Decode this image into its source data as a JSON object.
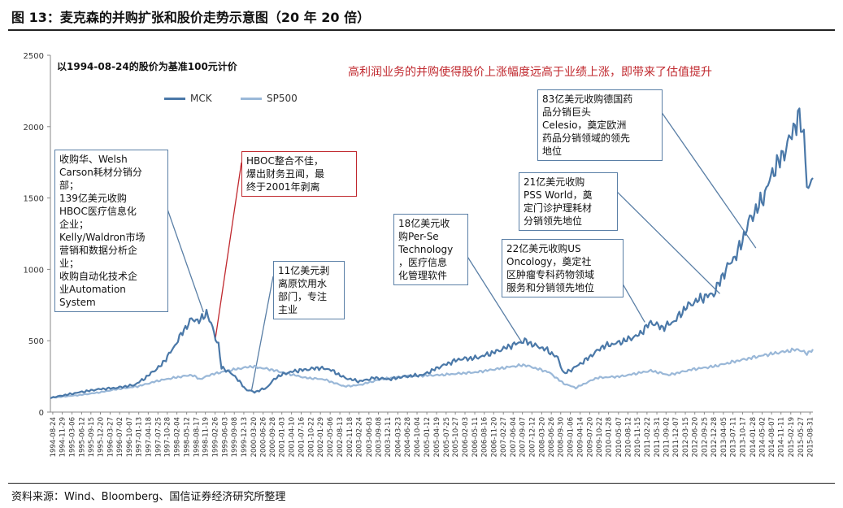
{
  "figure": {
    "title": "图 13：麦克森的并购扩张和股价走势示意图（20 年 20 倍）",
    "source": "资料来源：Wind、Bloomberg、国信证券经济研究所整理",
    "base_note": "以1994-08-24的股价为基准100元计价",
    "headline": "高利润业务的并购使得股价上涨幅度远高于业绩上涨，即带来了估值提升"
  },
  "chart_data": {
    "type": "line",
    "ylim": [
      0,
      2500
    ],
    "yticks": [
      0,
      500,
      1000,
      1500,
      2000,
      2500
    ],
    "x_labels": [
      "1994-08-24",
      "1994-11-29",
      "1995-03-06",
      "1995-06-12",
      "1995-09-15",
      "1995-12-20",
      "1996-03-27",
      "1996-07-02",
      "1996-10-07",
      "1997-01-13",
      "1997-04-18",
      "1997-07-25",
      "1997-10-28",
      "1998-02-04",
      "1998-05-12",
      "1998-08-17",
      "1998-11-19",
      "1999-02-26",
      "1999-06-03",
      "1999-09-08",
      "1999-12-13",
      "2000-03-20",
      "2000-06-26",
      "2000-09-28",
      "2001-01-03",
      "2001-04-10",
      "2001-07-16",
      "2001-10-22",
      "2002-01-29",
      "2002-05-06",
      "2002-08-13",
      "2002-11-18",
      "2003-02-24",
      "2003-06-03",
      "2003-09-08",
      "2003-12-11",
      "2004-03-23",
      "2004-06-28",
      "2004-10-04",
      "2005-01-12",
      "2005-04-19",
      "2005-07-25",
      "2005-10-27",
      "2006-02-03",
      "2006-05-11",
      "2006-08-16",
      "2006-11-20",
      "2007-02-27",
      "2007-06-04",
      "2007-09-07",
      "2007-12-12",
      "2008-03-20",
      "2008-06-26",
      "2008-09-30",
      "2009-01-06",
      "2009-04-14",
      "2009-07-20",
      "2009-10-22",
      "2010-01-28",
      "2010-05-07",
      "2010-08-12",
      "2010-11-15",
      "2011-02-22",
      "2011-05-31",
      "2011-09-02",
      "2011-12-07",
      "2012-03-15",
      "2012-06-20",
      "2012-09-25",
      "2012-12-28",
      "2013-04-05",
      "2013-07-11",
      "2013-10-17",
      "2014-01-28",
      "2014-05-02",
      "2014-08-07",
      "2014-11-11",
      "2015-02-19",
      "2015-05-27",
      "2015-08-31"
    ],
    "series": [
      {
        "name": "MCK",
        "color": "#4a78a8",
        "points": [
          [
            "1994-08",
            100
          ],
          [
            "1995-01",
            120
          ],
          [
            "1995-06",
            140
          ],
          [
            "1995-12",
            160
          ],
          [
            "1996-06",
            170
          ],
          [
            "1996-12",
            190
          ],
          [
            "1997-03",
            230
          ],
          [
            "1997-09",
            330
          ],
          [
            "1998-01",
            450
          ],
          [
            "1998-04",
            560
          ],
          [
            "1998-07",
            650
          ],
          [
            "1998-10",
            640
          ],
          [
            "1998-12",
            700
          ],
          [
            "1999-02",
            590
          ],
          [
            "1999-03",
            520
          ],
          [
            "1999-04",
            470
          ],
          [
            "1999-05",
            310
          ],
          [
            "1999-07",
            290
          ],
          [
            "1999-10",
            240
          ],
          [
            "2000-01",
            160
          ],
          [
            "2000-04",
            140
          ],
          [
            "2000-08",
            170
          ],
          [
            "2000-11",
            240
          ],
          [
            "2001-02",
            270
          ],
          [
            "2001-06",
            290
          ],
          [
            "2001-10",
            300
          ],
          [
            "2002-01",
            310
          ],
          [
            "2002-05",
            300
          ],
          [
            "2002-10",
            240
          ],
          [
            "2003-03",
            215
          ],
          [
            "2003-08",
            240
          ],
          [
            "2004-01",
            230
          ],
          [
            "2004-06",
            250
          ],
          [
            "2004-12",
            260
          ],
          [
            "2005-06",
            320
          ],
          [
            "2005-12",
            370
          ],
          [
            "2006-06",
            380
          ],
          [
            "2006-12",
            420
          ],
          [
            "2007-06",
            470
          ],
          [
            "2007-10",
            500
          ],
          [
            "2008-01",
            470
          ],
          [
            "2008-05",
            440
          ],
          [
            "2008-09",
            380
          ],
          [
            "2008-11",
            270
          ],
          [
            "2009-01",
            290
          ],
          [
            "2009-06",
            360
          ],
          [
            "2009-12",
            460
          ],
          [
            "2010-06",
            490
          ],
          [
            "2010-12",
            540
          ],
          [
            "2011-04",
            630
          ],
          [
            "2011-08",
            590
          ],
          [
            "2011-12",
            640
          ],
          [
            "2012-04",
            740
          ],
          [
            "2012-09",
            800
          ],
          [
            "2013-01",
            830
          ],
          [
            "2013-05",
            1000
          ],
          [
            "2013-09",
            1120
          ],
          [
            "2014-01",
            1350
          ],
          [
            "2014-05",
            1480
          ],
          [
            "2014-09",
            1700
          ],
          [
            "2014-12",
            1800
          ],
          [
            "2015-03",
            1950
          ],
          [
            "2015-05",
            2070
          ],
          [
            "2015-07",
            1950
          ],
          [
            "2015-08",
            1600
          ],
          [
            "2015-09",
            1550
          ],
          [
            "2015-10",
            1640
          ]
        ]
      },
      {
        "name": "SP500",
        "color": "#9ab8d8",
        "points": [
          [
            "1994-08",
            100
          ],
          [
            "1995-06",
            120
          ],
          [
            "1996-01",
            140
          ],
          [
            "1996-06",
            160
          ],
          [
            "1997-01",
            180
          ],
          [
            "1997-08",
            220
          ],
          [
            "1998-01",
            240
          ],
          [
            "1998-07",
            260
          ],
          [
            "1998-10",
            230
          ],
          [
            "1999-01",
            260
          ],
          [
            "1999-07",
            290
          ],
          [
            "2000-03",
            320
          ],
          [
            "2000-09",
            300
          ],
          [
            "2001-03",
            270
          ],
          [
            "2001-09",
            240
          ],
          [
            "2002-03",
            230
          ],
          [
            "2002-10",
            180
          ],
          [
            "2003-03",
            190
          ],
          [
            "2003-10",
            230
          ],
          [
            "2004-06",
            250
          ],
          [
            "2005-06",
            260
          ],
          [
            "2006-06",
            280
          ],
          [
            "2007-06",
            320
          ],
          [
            "2007-10",
            330
          ],
          [
            "2008-06",
            280
          ],
          [
            "2008-11",
            200
          ],
          [
            "2009-03",
            170
          ],
          [
            "2009-10",
            240
          ],
          [
            "2010-06",
            250
          ],
          [
            "2011-04",
            290
          ],
          [
            "2011-10",
            260
          ],
          [
            "2012-06",
            300
          ],
          [
            "2013-01",
            320
          ],
          [
            "2013-09",
            360
          ],
          [
            "2014-06",
            400
          ],
          [
            "2015-05",
            440
          ],
          [
            "2015-08",
            410
          ],
          [
            "2015-10",
            440
          ]
        ]
      }
    ]
  },
  "annotations": {
    "welsh": [
      "收购华​、Welsh",
      "Carson耗材分销分",
      "部；",
      "139亿美元收购",
      "HBOC医疗信息化",
      "企业；",
      "Kelly/Waldron市场",
      "营销和数据分析企",
      "业；",
      "收购自动化技术企",
      "业Automation",
      "System"
    ],
    "hboc": [
      "HBOC整合不佳，",
      "爆出财务丑闻，最",
      "终于2001年剥离"
    ],
    "water": [
      "11亿美元剥",
      "离原饮用水",
      "部门，专注",
      "主业"
    ],
    "perse": [
      "18亿美元收",
      "购Per-Se",
      "Technology",
      "，医疗信息",
      "化管理软件"
    ],
    "celesio": [
      "83亿美元收购德国药",
      "品分销巨头",
      "Celesio，奠定欧洲",
      "药品分销领域的领先",
      "地位"
    ],
    "pss": [
      "21亿美元收购",
      "PSS World，奠",
      "定门诊护理耗材",
      "分销领先地位"
    ],
    "usonc": [
      "22亿美元收购US",
      "Oncology，奠定社",
      "区肿瘤专科药物领域",
      "服务和分销领先地位"
    ]
  }
}
